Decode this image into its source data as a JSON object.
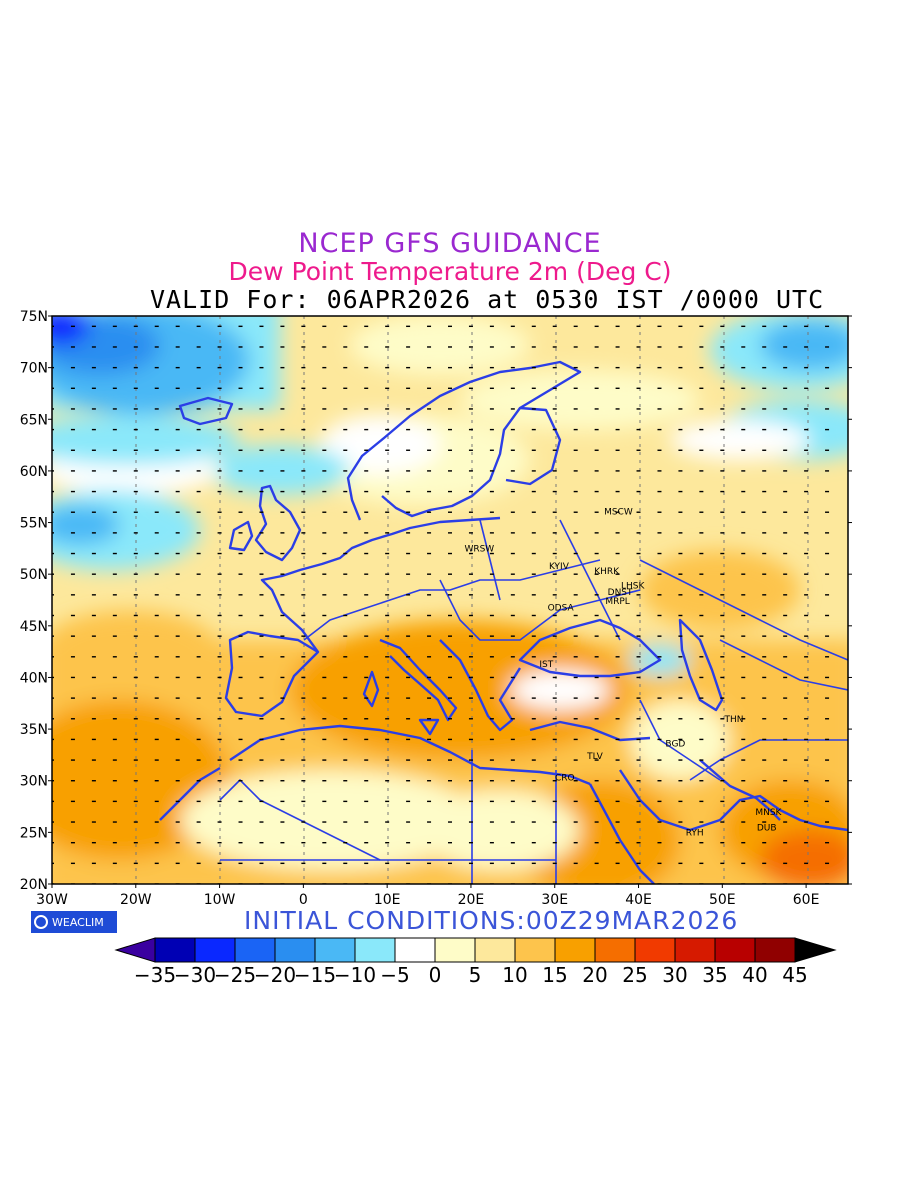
{
  "header": {
    "line1": "NCEP GFS GUIDANCE",
    "line2": "Dew Point Temperature 2m (Deg C)",
    "line3": "VALID For: 06APR2026 at 0530 IST /0000 UTC"
  },
  "footer": {
    "badge": "WEACLIM",
    "initial": "INITIAL CONDITIONS:00Z29MAR2026"
  },
  "map": {
    "lon_labels": [
      "30W",
      "20W",
      "10W",
      "0",
      "10E",
      "20E",
      "30E",
      "40E",
      "50E",
      "60E"
    ],
    "lat_labels": [
      "75N",
      "70N",
      "65N",
      "60N",
      "55N",
      "50N",
      "45N",
      "40N",
      "35N",
      "30N",
      "25N",
      "20N"
    ],
    "cities": [
      {
        "name": "MSCW",
        "lon": 37.6,
        "lat": 55.8
      },
      {
        "name": "KYIV",
        "lon": 30.5,
        "lat": 50.5
      },
      {
        "name": "KHRK",
        "lon": 36.2,
        "lat": 50.0
      },
      {
        "name": "LHSK",
        "lon": 39.3,
        "lat": 48.6
      },
      {
        "name": "DNST",
        "lon": 37.8,
        "lat": 48.0
      },
      {
        "name": "MRPL",
        "lon": 37.5,
        "lat": 47.1
      },
      {
        "name": "ODSA",
        "lon": 30.7,
        "lat": 46.5
      },
      {
        "name": "WRSW",
        "lon": 21.0,
        "lat": 52.2
      },
      {
        "name": "IST",
        "lon": 29.0,
        "lat": 41.0
      },
      {
        "name": "THN",
        "lon": 51.4,
        "lat": 35.7
      },
      {
        "name": "BGD",
        "lon": 44.4,
        "lat": 33.3
      },
      {
        "name": "TLV",
        "lon": 34.8,
        "lat": 32.1
      },
      {
        "name": "CRO",
        "lon": 31.2,
        "lat": 30.0
      },
      {
        "name": "MNSK",
        "lon": 55.5,
        "lat": 26.7
      },
      {
        "name": "RYH",
        "lon": 46.7,
        "lat": 24.7
      },
      {
        "name": "DUB",
        "lon": 55.3,
        "lat": 25.2
      }
    ]
  },
  "legend": {
    "tick_labels": [
      "-35",
      "-30",
      "-25",
      "-20",
      "-15",
      "-10",
      "-5",
      "0",
      "5",
      "10",
      "15",
      "20",
      "25",
      "30",
      "35",
      "40",
      "45"
    ],
    "colors": [
      "#0000b4",
      "#0a28ff",
      "#1a64f5",
      "#2a8ef0",
      "#4ab8f5",
      "#8ae8fa",
      "#ffffff",
      "#fefcc8",
      "#fde89c",
      "#fdc44c",
      "#f8a000",
      "#f56e00",
      "#f13a00",
      "#d61a00",
      "#b80000",
      "#900000"
    ],
    "left_cap": "#3a00a0",
    "right_cap": "#000000"
  }
}
